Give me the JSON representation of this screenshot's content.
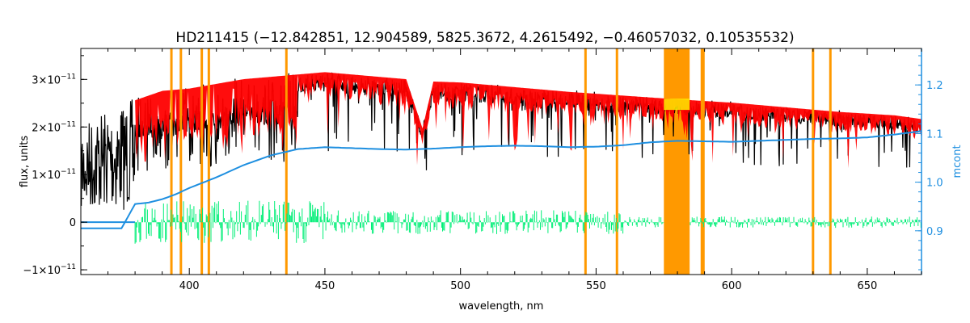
{
  "chart_data": {
    "type": "line",
    "title": "HD211415   (−12.842851, 12.904589, 5825.3672, 4.2615492, −0.46057032, 0.10535532)",
    "xlabel": "wavelength, nm",
    "ylabel": "flux, units",
    "ylabel_right": "mcont",
    "xlim": [
      360,
      670
    ],
    "ylim": [
      -1.1e-11,
      3.65e-11
    ],
    "ylim_right": [
      0.81,
      1.275
    ],
    "x_ticks": [
      400,
      450,
      500,
      550,
      600,
      650
    ],
    "x_tick_labels": [
      "400",
      "450",
      "500",
      "550",
      "600",
      "650"
    ],
    "y_ticks": [
      -1e-11,
      0,
      1e-11,
      2e-11,
      3e-11
    ],
    "y_tick_labels": [
      {
        "mant": "−1×10",
        "exp": "−11"
      },
      {
        "mant": "0",
        "exp": ""
      },
      {
        "mant": "1×10",
        "exp": "−11"
      },
      {
        "mant": "2×10",
        "exp": "−11"
      },
      {
        "mant": "3×10",
        "exp": "−11"
      }
    ],
    "y_right_ticks": [
      0.9,
      1.0,
      1.1,
      1.2
    ],
    "y_right_tick_labels": [
      "0.9",
      "1.0",
      "1.1",
      "1.2"
    ],
    "grid": false,
    "colors": {
      "observed": "#000000",
      "model": "#ff0000",
      "residual": "#00ee77",
      "continuum": "#1e8fe0",
      "mask": "#ff9900",
      "masked_region": "#ffee00",
      "right_axis": "#1e8fe0"
    },
    "masked_wavelengths": [
      393.4,
      396.9,
      404.6,
      407.2,
      435.8,
      546.1,
      557.7,
      589.0,
      589.6,
      630.0,
      636.4
    ],
    "masked_bands": [
      [
        575.0,
        584.5
      ]
    ],
    "series": [
      {
        "role": "observed",
        "x": [
          360,
          365,
          370,
          375,
          380,
          390,
          400,
          410,
          420,
          430,
          440,
          450,
          460,
          470,
          480,
          486,
          490,
          500,
          520,
          540,
          560,
          580,
          600,
          620,
          640,
          660,
          670
        ],
        "values": [
          2e-11,
          2.3e-11,
          2.4e-11,
          2.5e-11,
          2.6e-11,
          2.8e-11,
          2.85e-11,
          2.95e-11,
          3.05e-11,
          3.1e-11,
          3.15e-11,
          3.2e-11,
          3.15e-11,
          3.1e-11,
          3.05e-11,
          2e-11,
          3e-11,
          2.98e-11,
          2.88e-11,
          2.78e-11,
          2.7e-11,
          2.62e-11,
          2.55e-11,
          2.45e-11,
          2.35e-11,
          2.28e-11,
          2.2e-11
        ]
      },
      {
        "role": "continuum",
        "x": [
          360,
          375,
          380,
          385,
          390,
          395,
          400,
          410,
          420,
          430,
          440,
          450,
          460,
          470,
          480,
          490,
          500,
          510,
          520,
          530,
          540,
          550,
          560,
          570,
          580,
          590,
          600,
          610,
          620,
          630,
          640,
          650,
          660,
          670
        ],
        "values": [
          0.905,
          0.905,
          0.955,
          0.958,
          0.965,
          0.975,
          0.988,
          1.01,
          1.035,
          1.055,
          1.068,
          1.072,
          1.07,
          1.068,
          1.067,
          1.069,
          1.072,
          1.074,
          1.075,
          1.074,
          1.072,
          1.073,
          1.076,
          1.082,
          1.085,
          1.084,
          1.083,
          1.085,
          1.087,
          1.089,
          1.09,
          1.092,
          1.098,
          1.105
        ]
      },
      {
        "role": "residual",
        "x": [
          360,
          380,
          670
        ],
        "values": [
          0,
          0,
          0
        ]
      }
    ]
  }
}
